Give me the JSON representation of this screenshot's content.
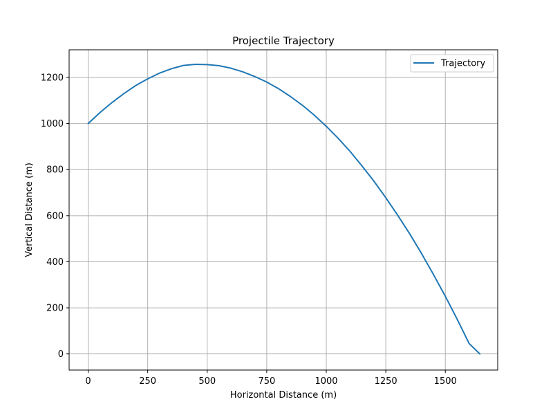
{
  "chart_data": {
    "type": "line",
    "title": "Projectile Trajectory",
    "xlabel": "Horizontal Distance (m)",
    "ylabel": "Vertical Distance (m)",
    "xlim": [
      -80,
      1720
    ],
    "ylim": [
      -70,
      1320
    ],
    "xticks": [
      0,
      250,
      500,
      750,
      1000,
      1250,
      1500
    ],
    "yticks": [
      0,
      200,
      400,
      600,
      800,
      1000,
      1200
    ],
    "grid": true,
    "legend_position": "top-right",
    "series": [
      {
        "name": "Trajectory",
        "color": "#1f77b4",
        "x": [
          0,
          50,
          100,
          150,
          200,
          250,
          300,
          350,
          400,
          450,
          500,
          550,
          600,
          650,
          700,
          750,
          800,
          850,
          900,
          950,
          1000,
          1050,
          1100,
          1150,
          1200,
          1250,
          1300,
          1350,
          1400,
          1450,
          1500,
          1550,
          1600,
          1645
        ],
        "y": [
          1000,
          1048,
          1091,
          1130,
          1165,
          1194,
          1219,
          1238,
          1252,
          1257,
          1256,
          1251,
          1240,
          1224,
          1204,
          1180,
          1151,
          1117,
          1079,
          1036,
          988,
          936,
          879,
          816,
          750,
          678,
          602,
          522,
          436,
          345,
          250,
          150,
          45,
          0
        ]
      }
    ]
  }
}
